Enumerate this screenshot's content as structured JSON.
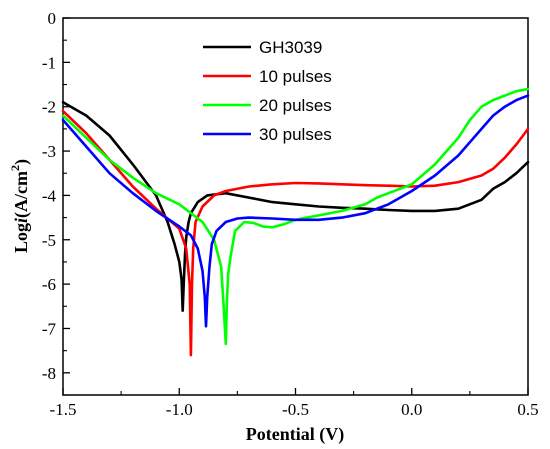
{
  "chart_data": {
    "type": "line",
    "xlabel": "Potential (V)",
    "ylabel_parts": {
      "a": "Log",
      "b": "i",
      "c": "(A/cm",
      "sup": "2",
      "d": ")"
    },
    "xlim": [
      -1.5,
      0.5
    ],
    "ylim": [
      -8.5,
      0
    ],
    "xticks": [
      -1.5,
      -1.0,
      -0.5,
      0.0,
      0.5
    ],
    "xtick_labels": [
      "-1.5",
      "-1.0",
      "-0.5",
      "0.0",
      "0.5"
    ],
    "yticks": [
      0,
      -1,
      -2,
      -3,
      -4,
      -5,
      -6,
      -7,
      -8
    ],
    "ytick_labels": [
      "0",
      "-1",
      "-2",
      "-3",
      "-4",
      "-5",
      "-6",
      "-7",
      "-8"
    ],
    "grid": false,
    "legend_position": "top-center",
    "series": [
      {
        "name": "GH3039",
        "color": "#000000",
        "x": [
          -1.5,
          -1.4,
          -1.3,
          -1.2,
          -1.1,
          -1.05,
          -1.02,
          -1.0,
          -0.99,
          -0.985,
          -0.98,
          -0.975,
          -0.97,
          -0.96,
          -0.95,
          -0.92,
          -0.88,
          -0.8,
          -0.7,
          -0.6,
          -0.5,
          -0.4,
          -0.3,
          -0.2,
          -0.1,
          0.0,
          0.1,
          0.2,
          0.3,
          0.35,
          0.4,
          0.45,
          0.5
        ],
        "y": [
          -1.9,
          -2.2,
          -2.65,
          -3.3,
          -4.0,
          -4.6,
          -5.1,
          -5.5,
          -5.9,
          -6.6,
          -5.9,
          -5.3,
          -4.95,
          -4.6,
          -4.4,
          -4.15,
          -4.0,
          -3.95,
          -4.05,
          -4.15,
          -4.2,
          -4.25,
          -4.28,
          -4.3,
          -4.33,
          -4.35,
          -4.35,
          -4.3,
          -4.1,
          -3.85,
          -3.7,
          -3.5,
          -3.25
        ]
      },
      {
        "name": "10 pulses",
        "color": "#ff0000",
        "x": [
          -1.5,
          -1.4,
          -1.3,
          -1.2,
          -1.1,
          -1.0,
          -0.97,
          -0.955,
          -0.95,
          -0.945,
          -0.94,
          -0.93,
          -0.9,
          -0.85,
          -0.8,
          -0.7,
          -0.6,
          -0.5,
          -0.4,
          -0.3,
          -0.2,
          -0.1,
          0.0,
          0.1,
          0.2,
          0.3,
          0.35,
          0.4,
          0.45,
          0.5
        ],
        "y": [
          -2.1,
          -2.6,
          -3.2,
          -3.8,
          -4.3,
          -4.75,
          -5.2,
          -6.0,
          -7.6,
          -6.0,
          -5.2,
          -4.6,
          -4.25,
          -4.0,
          -3.9,
          -3.8,
          -3.75,
          -3.72,
          -3.73,
          -3.75,
          -3.77,
          -3.78,
          -3.8,
          -3.78,
          -3.7,
          -3.55,
          -3.4,
          -3.15,
          -2.85,
          -2.5
        ]
      },
      {
        "name": "20 pulses",
        "color": "#00ff00",
        "x": [
          -1.5,
          -1.4,
          -1.3,
          -1.2,
          -1.1,
          -1.0,
          -0.9,
          -0.85,
          -0.82,
          -0.81,
          -0.8,
          -0.795,
          -0.79,
          -0.78,
          -0.76,
          -0.72,
          -0.68,
          -0.64,
          -0.6,
          -0.55,
          -0.5,
          -0.4,
          -0.3,
          -0.2,
          -0.15,
          -0.1,
          0.0,
          0.1,
          0.15,
          0.2,
          0.25,
          0.3,
          0.35,
          0.4,
          0.45,
          0.5
        ],
        "y": [
          -2.2,
          -2.7,
          -3.2,
          -3.6,
          -3.95,
          -4.2,
          -4.6,
          -5.0,
          -5.6,
          -6.4,
          -7.35,
          -6.4,
          -5.8,
          -5.4,
          -4.8,
          -4.6,
          -4.62,
          -4.7,
          -4.72,
          -4.65,
          -4.55,
          -4.45,
          -4.35,
          -4.2,
          -4.05,
          -3.95,
          -3.75,
          -3.3,
          -3.0,
          -2.7,
          -2.3,
          -2.0,
          -1.85,
          -1.75,
          -1.65,
          -1.6
        ]
      },
      {
        "name": "30 pulses",
        "color": "#0000ff",
        "x": [
          -1.5,
          -1.4,
          -1.3,
          -1.2,
          -1.1,
          -1.0,
          -0.95,
          -0.92,
          -0.9,
          -0.89,
          -0.885,
          -0.88,
          -0.87,
          -0.86,
          -0.84,
          -0.8,
          -0.75,
          -0.7,
          -0.6,
          -0.5,
          -0.4,
          -0.3,
          -0.2,
          -0.1,
          0.0,
          0.1,
          0.2,
          0.25,
          0.3,
          0.35,
          0.4,
          0.45,
          0.5
        ],
        "y": [
          -2.3,
          -2.9,
          -3.5,
          -3.95,
          -4.35,
          -4.7,
          -4.9,
          -5.2,
          -5.7,
          -6.3,
          -6.95,
          -6.3,
          -5.6,
          -5.1,
          -4.8,
          -4.6,
          -4.52,
          -4.5,
          -4.52,
          -4.55,
          -4.55,
          -4.5,
          -4.4,
          -4.2,
          -3.9,
          -3.55,
          -3.1,
          -2.8,
          -2.5,
          -2.2,
          -2.0,
          -1.85,
          -1.75
        ]
      }
    ]
  }
}
